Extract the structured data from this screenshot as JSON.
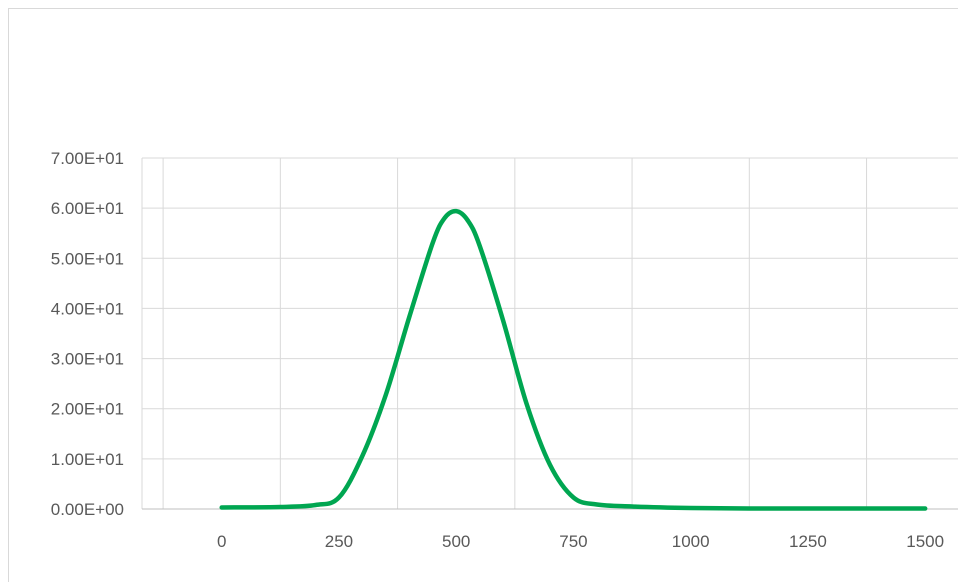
{
  "chart_data": {
    "type": "line",
    "title": "",
    "xlabel": "",
    "ylabel": "",
    "xlim": [
      -170,
      1570
    ],
    "ylim": [
      0,
      70
    ],
    "x_ticks": [
      0,
      250,
      500,
      750,
      1000,
      1250,
      1500
    ],
    "x_tick_labels": [
      "0",
      "250",
      "500",
      "750",
      "1000",
      "1250",
      "1500"
    ],
    "y_ticks": [
      0,
      10,
      20,
      30,
      40,
      50,
      60,
      70
    ],
    "y_tick_labels": [
      "0.00E+00",
      "1.00E+01",
      "2.00E+01",
      "3.00E+01",
      "4.00E+01",
      "5.00E+01",
      "6.00E+01",
      "7.00E+01"
    ],
    "grid": true,
    "legend": "none",
    "series": [
      {
        "color": "#00a651",
        "x": [
          0,
          125,
          200,
          250,
          300,
          350,
          400,
          450,
          475,
          500,
          525,
          550,
          600,
          650,
          700,
          750,
          800,
          875,
          1000,
          1125,
          1250,
          1375,
          1500
        ],
        "y": [
          0.3,
          0.4,
          0.8,
          2.3,
          10.6,
          22.8,
          38.3,
          53.1,
          58.0,
          59.4,
          57.5,
          52.5,
          37.6,
          21.0,
          8.8,
          2.3,
          0.9,
          0.5,
          0.2,
          0.1,
          0.1,
          0.1,
          0.1
        ]
      }
    ]
  }
}
